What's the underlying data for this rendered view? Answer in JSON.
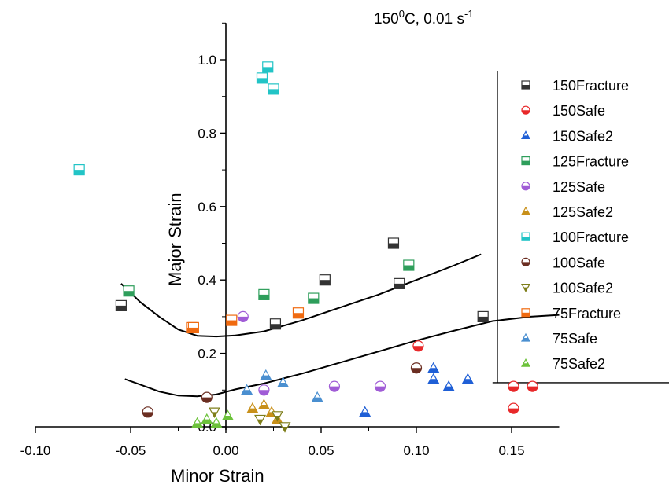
{
  "chart_data": {
    "type": "scatter",
    "title": "150⁰C, 0.01 s⁻¹",
    "title_parts": {
      "base": "150",
      "sup": "0",
      "mid": "C, 0.01 s",
      "sup2": "-1"
    },
    "xlabel": "Minor Strain",
    "ylabel": "Major Strain",
    "xlim": [
      -0.1,
      0.175
    ],
    "ylim": [
      0.0,
      1.1
    ],
    "xticks": [
      "-0.10",
      "-0.05",
      "0.00",
      "0.05",
      "0.10",
      "0.15"
    ],
    "xtick_values": [
      -0.1,
      -0.05,
      0.0,
      0.05,
      0.1,
      0.15
    ],
    "yticks": [
      "0.0",
      "0.2",
      "0.4",
      "0.6",
      "0.8",
      "1.0"
    ],
    "ytick_values": [
      0.0,
      0.2,
      0.4,
      0.6,
      0.8,
      1.0
    ],
    "grid": false,
    "legend_position": "right",
    "series": [
      {
        "name": "150Fracture",
        "marker": "square",
        "color": "#333333",
        "points": [
          [
            -0.055,
            0.33
          ],
          [
            0.026,
            0.28
          ],
          [
            0.052,
            0.4
          ],
          [
            0.088,
            0.5
          ],
          [
            0.091,
            0.39
          ],
          [
            0.135,
            0.3
          ]
        ]
      },
      {
        "name": "150Safe",
        "marker": "circle",
        "color": "#e8282a",
        "points": [
          [
            0.101,
            0.22
          ],
          [
            0.151,
            0.11
          ],
          [
            0.161,
            0.11
          ],
          [
            0.151,
            0.05
          ]
        ]
      },
      {
        "name": "150Safe2",
        "marker": "triangle-up",
        "color": "#1f5fd6",
        "points": [
          [
            0.109,
            0.16
          ],
          [
            0.109,
            0.13
          ],
          [
            0.117,
            0.11
          ],
          [
            0.127,
            0.13
          ],
          [
            0.073,
            0.04
          ]
        ]
      },
      {
        "name": "125Fracture",
        "marker": "square",
        "color": "#2e9e5b",
        "points": [
          [
            -0.051,
            0.37
          ],
          [
            0.02,
            0.36
          ],
          [
            0.046,
            0.35
          ],
          [
            0.096,
            0.44
          ]
        ]
      },
      {
        "name": "125Safe",
        "marker": "circle",
        "color": "#a05cd6",
        "points": [
          [
            0.009,
            0.3
          ],
          [
            0.02,
            0.1
          ],
          [
            0.057,
            0.11
          ],
          [
            0.081,
            0.11
          ]
        ]
      },
      {
        "name": "125Safe2",
        "marker": "triangle-up",
        "color": "#c8901a",
        "points": [
          [
            0.014,
            0.05
          ],
          [
            0.02,
            0.06
          ],
          [
            0.024,
            0.04
          ],
          [
            0.027,
            0.02
          ]
        ]
      },
      {
        "name": "100Fracture",
        "marker": "square",
        "color": "#22c4c6",
        "points": [
          [
            -0.077,
            0.7
          ],
          [
            0.019,
            0.95
          ],
          [
            0.022,
            0.98
          ],
          [
            0.025,
            0.92
          ]
        ]
      },
      {
        "name": "100Safe",
        "marker": "circle",
        "color": "#6b2e22",
        "points": [
          [
            -0.041,
            0.04
          ],
          [
            -0.01,
            0.08
          ],
          [
            0.1,
            0.16
          ]
        ]
      },
      {
        "name": "100Safe2",
        "marker": "triangle-down",
        "color": "#7e7e1a",
        "points": [
          [
            -0.006,
            0.04
          ],
          [
            0.018,
            0.02
          ],
          [
            0.027,
            0.03
          ],
          [
            0.031,
            0.0
          ]
        ]
      },
      {
        "name": "75Fracture",
        "marker": "square",
        "color": "#f06a10",
        "points": [
          [
            -0.018,
            0.27
          ],
          [
            -0.017,
            0.27
          ],
          [
            0.003,
            0.29
          ],
          [
            0.038,
            0.31
          ]
        ]
      },
      {
        "name": "75Safe",
        "marker": "triangle-up",
        "color": "#4a8fd0",
        "points": [
          [
            0.011,
            0.1
          ],
          [
            0.021,
            0.14
          ],
          [
            0.03,
            0.12
          ],
          [
            0.048,
            0.08
          ]
        ]
      },
      {
        "name": "75Safe2",
        "marker": "triangle-up",
        "color": "#6cc23a",
        "points": [
          [
            -0.015,
            0.01
          ],
          [
            -0.01,
            0.02
          ],
          [
            -0.005,
            0.01
          ],
          [
            0.001,
            0.03
          ]
        ]
      }
    ],
    "curves": [
      {
        "name": "upper boundary",
        "points": [
          [
            -0.055,
            0.39
          ],
          [
            -0.045,
            0.34
          ],
          [
            -0.035,
            0.3
          ],
          [
            -0.025,
            0.265
          ],
          [
            -0.015,
            0.248
          ],
          [
            -0.005,
            0.246
          ],
          [
            0.005,
            0.249
          ],
          [
            0.02,
            0.26
          ],
          [
            0.04,
            0.29
          ],
          [
            0.06,
            0.325
          ],
          [
            0.08,
            0.36
          ],
          [
            0.1,
            0.4
          ],
          [
            0.12,
            0.44
          ],
          [
            0.134,
            0.47
          ]
        ]
      },
      {
        "name": "lower boundary",
        "points": [
          [
            -0.053,
            0.13
          ],
          [
            -0.045,
            0.115
          ],
          [
            -0.035,
            0.096
          ],
          [
            -0.025,
            0.085
          ],
          [
            -0.015,
            0.083
          ],
          [
            -0.005,
            0.088
          ],
          [
            0.005,
            0.102
          ],
          [
            0.02,
            0.118
          ],
          [
            0.04,
            0.145
          ],
          [
            0.06,
            0.175
          ],
          [
            0.08,
            0.205
          ],
          [
            0.1,
            0.235
          ],
          [
            0.12,
            0.262
          ],
          [
            0.14,
            0.288
          ],
          [
            0.16,
            0.3
          ],
          [
            0.175,
            0.305
          ]
        ]
      }
    ],
    "legend_line": {
      "name": "legend outline",
      "points": [
        [
          0.14,
          0.12
        ],
        [
          0.175,
          0.12
        ]
      ]
    }
  }
}
